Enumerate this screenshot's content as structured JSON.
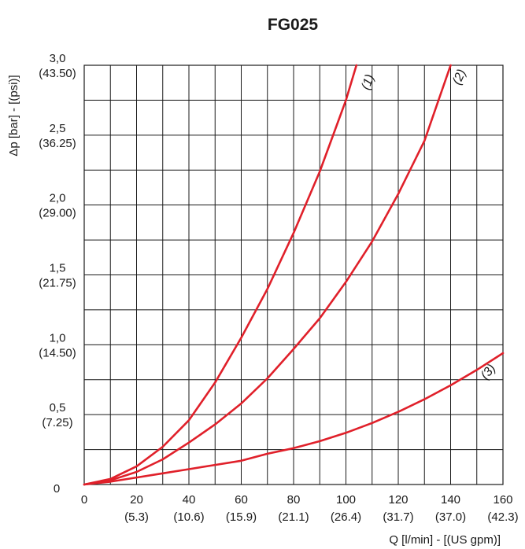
{
  "chart_data": {
    "type": "line",
    "title": "FG025",
    "xlabel": "Q [l/min] - [(US gpm)]",
    "ylabel": "Δp [bar] - [(psi)]",
    "xlim": [
      0,
      160
    ],
    "ylim": [
      0,
      3.0
    ],
    "grid": true,
    "line_color": "#e0202a",
    "x_ticks": [
      {
        "value": 0,
        "label": "0",
        "sub": ""
      },
      {
        "value": 20,
        "label": "20",
        "sub": "(5.3)"
      },
      {
        "value": 40,
        "label": "40",
        "sub": "(10.6)"
      },
      {
        "value": 60,
        "label": "60",
        "sub": "(15.9)"
      },
      {
        "value": 80,
        "label": "80",
        "sub": "(21.1)"
      },
      {
        "value": 100,
        "label": "100",
        "sub": "(26.4)"
      },
      {
        "value": 120,
        "label": "120",
        "sub": "(31.7)"
      },
      {
        "value": 140,
        "label": "140",
        "sub": "(37.0)"
      },
      {
        "value": 160,
        "label": "160",
        "sub": "(42.3)"
      }
    ],
    "y_ticks": [
      {
        "value": 0,
        "label": "0",
        "sub": ""
      },
      {
        "value": 0.5,
        "label": "0,5",
        "sub": "(7.25)"
      },
      {
        "value": 1.0,
        "label": "1,0",
        "sub": "(14.50)"
      },
      {
        "value": 1.5,
        "label": "1,5",
        "sub": "(21.75)"
      },
      {
        "value": 2.0,
        "label": "2,0",
        "sub": "(29.00)"
      },
      {
        "value": 2.5,
        "label": "2,5",
        "sub": "(36.25)"
      },
      {
        "value": 3.0,
        "label": "3,0",
        "sub": "(43.50)"
      }
    ],
    "series": [
      {
        "name": "(1)",
        "x": [
          0,
          10,
          20,
          30,
          40,
          50,
          60,
          70,
          80,
          90,
          100,
          104
        ],
        "y": [
          0,
          0.04,
          0.13,
          0.27,
          0.46,
          0.73,
          1.05,
          1.4,
          1.8,
          2.24,
          2.75,
          3.0
        ]
      },
      {
        "name": "(2)",
        "x": [
          0,
          10,
          20,
          30,
          40,
          50,
          60,
          70,
          80,
          90,
          100,
          110,
          120,
          130,
          140
        ],
        "y": [
          0,
          0.03,
          0.09,
          0.18,
          0.3,
          0.43,
          0.58,
          0.76,
          0.97,
          1.19,
          1.45,
          1.74,
          2.08,
          2.46,
          3.0
        ]
      },
      {
        "name": "(3)",
        "x": [
          0,
          10,
          20,
          30,
          40,
          50,
          60,
          70,
          80,
          90,
          100,
          110,
          120,
          130,
          140,
          150,
          160
        ],
        "y": [
          0,
          0.02,
          0.05,
          0.08,
          0.11,
          0.14,
          0.17,
          0.22,
          0.26,
          0.31,
          0.37,
          0.44,
          0.52,
          0.61,
          0.71,
          0.82,
          0.94
        ]
      }
    ]
  }
}
